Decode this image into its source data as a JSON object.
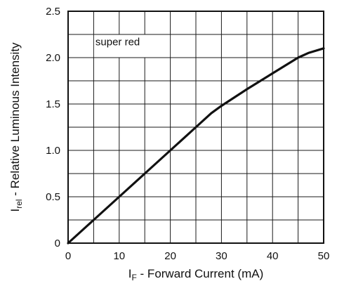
{
  "chart_data": {
    "type": "line",
    "title": "",
    "xlabel": {
      "main": "I",
      "sub": "F",
      "rest": " - Forward Current (mA)"
    },
    "ylabel": {
      "main": "I",
      "sub": "rel",
      "rest": " - Relative Luminous Intensity"
    },
    "xlim": [
      0,
      50
    ],
    "ylim": [
      0,
      2.5
    ],
    "x_ticks": [
      0,
      10,
      20,
      30,
      40,
      50
    ],
    "x_tick_labels": [
      "0",
      "10",
      "20",
      "30",
      "40",
      "50"
    ],
    "y_ticks": [
      0,
      0.5,
      1.0,
      1.5,
      2.0,
      2.5
    ],
    "y_tick_labels": [
      "0",
      "0.5",
      "1.0",
      "1.5",
      "2.0",
      "2.5"
    ],
    "grid": true,
    "grid_x_step": 5,
    "grid_y_step": 0.25,
    "annotation": "super red",
    "series": [
      {
        "x": [
          0,
          5,
          10,
          15,
          20,
          25,
          28,
          30,
          35,
          40,
          45,
          47,
          50
        ],
        "y": [
          0,
          0.25,
          0.5,
          0.75,
          1.0,
          1.25,
          1.4,
          1.48,
          1.66,
          1.83,
          2.0,
          2.05,
          2.1
        ],
        "color": "#111111"
      }
    ]
  }
}
